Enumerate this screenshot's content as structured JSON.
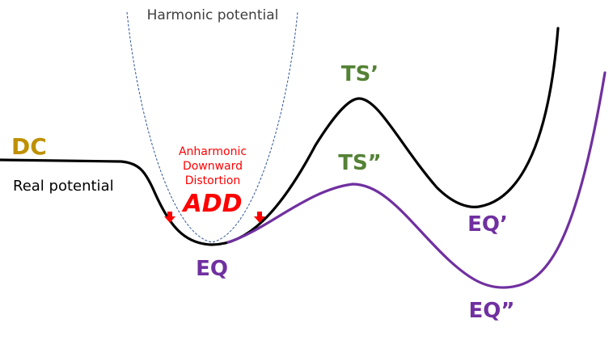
{
  "labels": {
    "harmonic": "Harmonic potential",
    "dc": "DC",
    "real": "Real potential",
    "anharm_line1": "Anharmonic",
    "anharm_line2": "Downward",
    "anharm_line3": "Distortion",
    "add": "ADD",
    "ts1": "TS’",
    "ts2": "TS”",
    "eq": "EQ",
    "eq1": "EQ’",
    "eq2": "EQ”"
  },
  "colors": {
    "real_curve": "#000000",
    "purple_curve": "#7030a0",
    "harmonic_curve": "#2f5597",
    "dc_label": "#bf9000",
    "ts_label": "#548235",
    "eq_label": "#7030a0",
    "add_label": "#ff0000"
  },
  "icons": [
    "down-arrow-icon",
    "down-arrow-icon"
  ]
}
